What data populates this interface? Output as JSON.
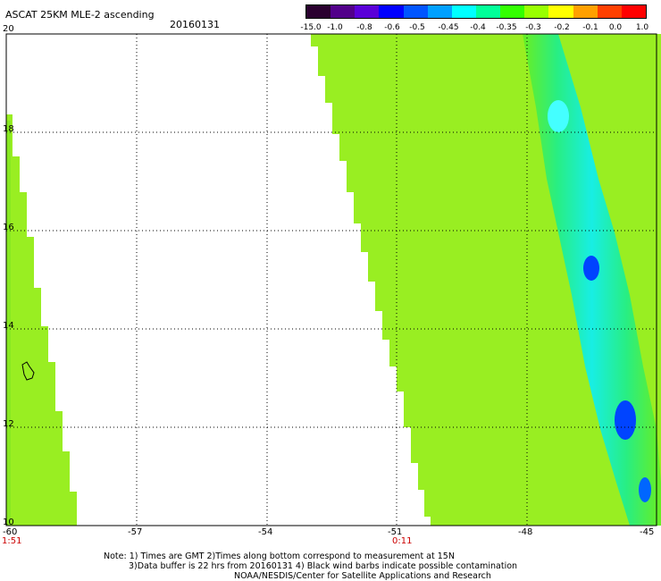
{
  "header": {
    "title": "ASCAT 25KM MLE-2 ascending",
    "date": "20160131"
  },
  "colorbar": {
    "labels": [
      "-15.0",
      "-1.0",
      "-0.8",
      "-0.6",
      "-0.5",
      "-0.45",
      "-0.4",
      "-0.35",
      "-0.3",
      "-0.2",
      "-0.1",
      "0.0",
      "1.0"
    ],
    "colors": [
      "#2a002f",
      "#52008a",
      "#5a00d8",
      "#0000ff",
      "#0055ff",
      "#00a0ff",
      "#00ffff",
      "#00ff99",
      "#33ff00",
      "#99ff00",
      "#ffff00",
      "#ffa000",
      "#ff4000",
      "#ff0000"
    ]
  },
  "axes": {
    "lon_labels": [
      "-60",
      "-57",
      "-54",
      "-51",
      "-48",
      "-45"
    ],
    "lat_labels": [
      "20",
      "18",
      "16",
      "14",
      "12",
      "10"
    ],
    "time_labels": [
      "1:51",
      "0:11"
    ]
  },
  "notes": [
    "Note: 1) Times are GMT 2)Times along bottom correspond to measurement at 15N",
    "3)Data buffer is 22 hrs from 20160131 4) Black wind barbs indicate possible contamination",
    "NOAA/NESDIS/Center for Satellite Applications and Research"
  ]
}
